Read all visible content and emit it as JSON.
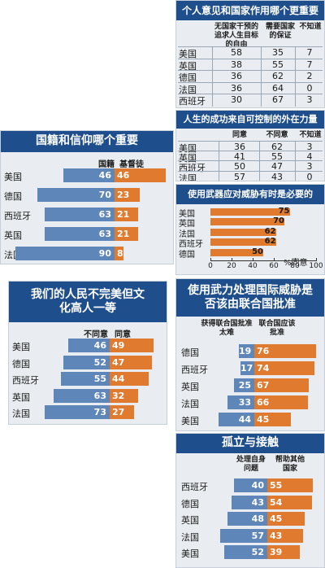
{
  "panels": {
    "opinion_vs_state": {
      "title": "个人意见和国家作用哪个更重要",
      "col1": "无国家干预的追求人生目标的自由",
      "col2": "需要国家的保证",
      "col3": "不知道"
    },
    "success_outside": {
      "title": "人生的成功来自可控制的外在力量",
      "col1": "同意",
      "col2": "不同意",
      "col3": "不知道"
    },
    "nationality_religion": {
      "title": "国籍和信仰哪个重要",
      "legend_blue": "国籍",
      "legend_orange": "基督徒"
    },
    "force_necessary": {
      "title": "使用武器应对威胁有时是必要的",
      "unit": "%同意"
    },
    "culture_superior": {
      "title": "我们的人民不完美但文化高人一等",
      "legend_blue": "不同意",
      "legend_orange": "同意"
    },
    "un_approval": {
      "title": "使用武力处理国际威胁是否该由联合国批准",
      "legend_blue": "获得联合国批准太难",
      "legend_orange": "联合国应该批准"
    },
    "isolation": {
      "title": "孤立与接触",
      "legend_blue": "处理自身问题",
      "legend_orange": "帮助其他国家"
    }
  },
  "chart_data": [
    {
      "type": "table",
      "title": "个人意见和国家作用哪个更重要",
      "columns": [
        "无国家干预的追求人生目标的自由",
        "需要国家的保证",
        "不知道"
      ],
      "rows": [
        {
          "label": "美国",
          "values": [
            58,
            35,
            7
          ]
        },
        {
          "label": "英国",
          "values": [
            38,
            55,
            7
          ]
        },
        {
          "label": "德国",
          "values": [
            36,
            62,
            2
          ]
        },
        {
          "label": "法国",
          "values": [
            36,
            64,
            0
          ]
        },
        {
          "label": "西班牙",
          "values": [
            30,
            67,
            3
          ]
        }
      ]
    },
    {
      "type": "table",
      "title": "人生的成功来自可控制的外在力量",
      "columns": [
        "同意",
        "不同意",
        "不知道"
      ],
      "rows": [
        {
          "label": "美国",
          "values": [
            36,
            62,
            3
          ]
        },
        {
          "label": "英国",
          "values": [
            41,
            55,
            4
          ]
        },
        {
          "label": "西班牙",
          "values": [
            50,
            47,
            3
          ]
        },
        {
          "label": "法国",
          "values": [
            57,
            43,
            0
          ]
        }
      ]
    },
    {
      "type": "bar",
      "title": "国籍和信仰哪个重要",
      "categories": [
        "美国",
        "德国",
        "西班牙",
        "英国",
        "法国"
      ],
      "series": [
        {
          "name": "国籍",
          "values": [
            46,
            70,
            63,
            63,
            90
          ],
          "color": "#5f86b8"
        },
        {
          "name": "基督徒",
          "values": [
            46,
            23,
            21,
            21,
            8
          ],
          "color": "#e07a2e"
        }
      ]
    },
    {
      "type": "bar",
      "title": "使用武器应对威胁有时是必要的",
      "categories": [
        "美国",
        "英国",
        "法国",
        "西班牙",
        "德国"
      ],
      "values": [
        75,
        70,
        62,
        62,
        50
      ],
      "xlabel": "%同意",
      "xlim": [
        0,
        100
      ],
      "ticks": [
        "0",
        "20",
        "40",
        "60",
        "80",
        "100"
      ],
      "color": "#e07a2e"
    },
    {
      "type": "bar",
      "title": "我们的人民不完美但文化高人一等",
      "categories": [
        "美国",
        "德国",
        "西班牙",
        "英国",
        "法国"
      ],
      "series": [
        {
          "name": "不同意",
          "values": [
            46,
            52,
            55,
            63,
            73
          ],
          "color": "#5f86b8"
        },
        {
          "name": "同意",
          "values": [
            49,
            47,
            44,
            32,
            27
          ],
          "color": "#e07a2e"
        }
      ]
    },
    {
      "type": "bar",
      "title": "使用武力处理国际威胁是否该由联合国批准",
      "categories": [
        "德国",
        "西班牙",
        "英国",
        "法国",
        "美国"
      ],
      "series": [
        {
          "name": "获得联合国批准太难",
          "values": [
            19,
            17,
            25,
            33,
            44
          ],
          "color": "#5f86b8"
        },
        {
          "name": "联合国应该批准",
          "values": [
            76,
            74,
            67,
            66,
            45
          ],
          "color": "#e07a2e"
        }
      ]
    },
    {
      "type": "bar",
      "title": "孤立与接触",
      "categories": [
        "西班牙",
        "德国",
        "英国",
        "法国",
        "美国"
      ],
      "series": [
        {
          "name": "处理自身问题",
          "values": [
            40,
            43,
            48,
            57,
            52
          ],
          "color": "#5f86b8"
        },
        {
          "name": "帮助其他国家",
          "values": [
            55,
            54,
            45,
            43,
            39
          ],
          "color": "#e07a2e"
        }
      ]
    }
  ]
}
